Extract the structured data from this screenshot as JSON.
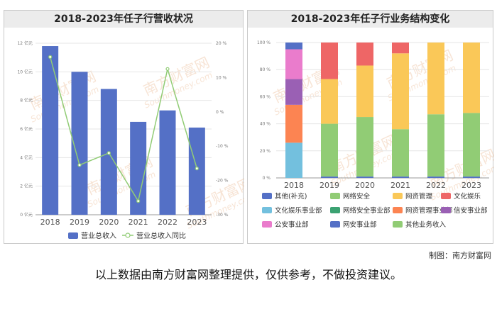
{
  "left_panel": {
    "title": "2018-2023年任子行营收状况"
  },
  "right_panel": {
    "title": "2018-2023年任子行业务结构变化"
  },
  "watermark": {
    "text": "南方财富网",
    "url": "Southmoney.com"
  },
  "footer": {
    "credit": "制图：南方财富网",
    "disclaimer": "以上数据由南方财富网整理提供，仅供参考，不做投资建议。"
  },
  "chart_data": [
    {
      "type": "bar",
      "categories": [
        "2018",
        "2019",
        "2020",
        "2021",
        "2022",
        "2023"
      ],
      "series": [
        {
          "name": "营业总收入",
          "values": [
            11.8,
            10.0,
            8.8,
            6.5,
            7.3,
            6.1
          ],
          "color": "#5470c6",
          "axis": "left"
        },
        {
          "name": "营业总收入同比",
          "values": [
            16,
            -15.5,
            -12,
            -26,
            12.5,
            -16.5
          ],
          "color": "#91cc75",
          "axis": "right",
          "type": "line"
        }
      ],
      "yticks_left": [
        "0 亿元",
        "2 亿元",
        "4 亿元",
        "6 亿元",
        "8 亿元",
        "10 亿元",
        "12 亿元"
      ],
      "yticks_right": [
        "-30 %",
        "-20 %",
        "-10 %",
        "0 %",
        "10 %",
        "20 %"
      ],
      "ylim_left": [
        0,
        12
      ],
      "ylim_right": [
        -30,
        20
      ],
      "legend_position": "bottom"
    },
    {
      "type": "bar",
      "stacked": true,
      "percent": true,
      "categories": [
        "2018",
        "2019",
        "2020",
        "2021",
        "2022",
        "2023"
      ],
      "yticks": [
        "0 %",
        "20 %",
        "40 %",
        "60 %",
        "80 %",
        "100 %"
      ],
      "ylim": [
        0,
        100
      ],
      "series": [
        {
          "name": "其他(补充)",
          "color": "#5470c6",
          "values": [
            0,
            1,
            1,
            1,
            1,
            1
          ]
        },
        {
          "name": "网络安全",
          "color": "#91cc75",
          "values": [
            0,
            39,
            44,
            35,
            46,
            47
          ]
        },
        {
          "name": "网资管理",
          "color": "#fac858",
          "values": [
            0,
            33,
            38,
            56,
            53,
            52
          ]
        },
        {
          "name": "文化娱乐",
          "color": "#ee6666",
          "values": [
            0,
            27,
            17,
            8,
            0,
            0
          ]
        },
        {
          "name": "文化娱乐事业部",
          "color": "#73c0de",
          "values": [
            26,
            0,
            0,
            0,
            0,
            0
          ]
        },
        {
          "name": "网络安全事业部",
          "color": "#3ba272",
          "values": [
            0,
            0,
            0,
            0,
            0,
            0
          ]
        },
        {
          "name": "网资管理事业部",
          "color": "#fc8452",
          "values": [
            28,
            0,
            0,
            0,
            0,
            0
          ]
        },
        {
          "name": "信安事业部",
          "color": "#9a60b4",
          "values": [
            19,
            0,
            0,
            0,
            0,
            0
          ]
        },
        {
          "name": "公安事业部",
          "color": "#ea7ccc",
          "values": [
            22,
            0,
            0,
            0,
            0,
            0
          ]
        },
        {
          "name": "网安事业部",
          "color": "#5470c6",
          "values": [
            5,
            0,
            0,
            0,
            0,
            0
          ]
        },
        {
          "name": "其他业务收入",
          "color": "#91cc75",
          "values": [
            0,
            0,
            0,
            0,
            0,
            0
          ]
        }
      ],
      "legend_position": "bottom"
    }
  ]
}
